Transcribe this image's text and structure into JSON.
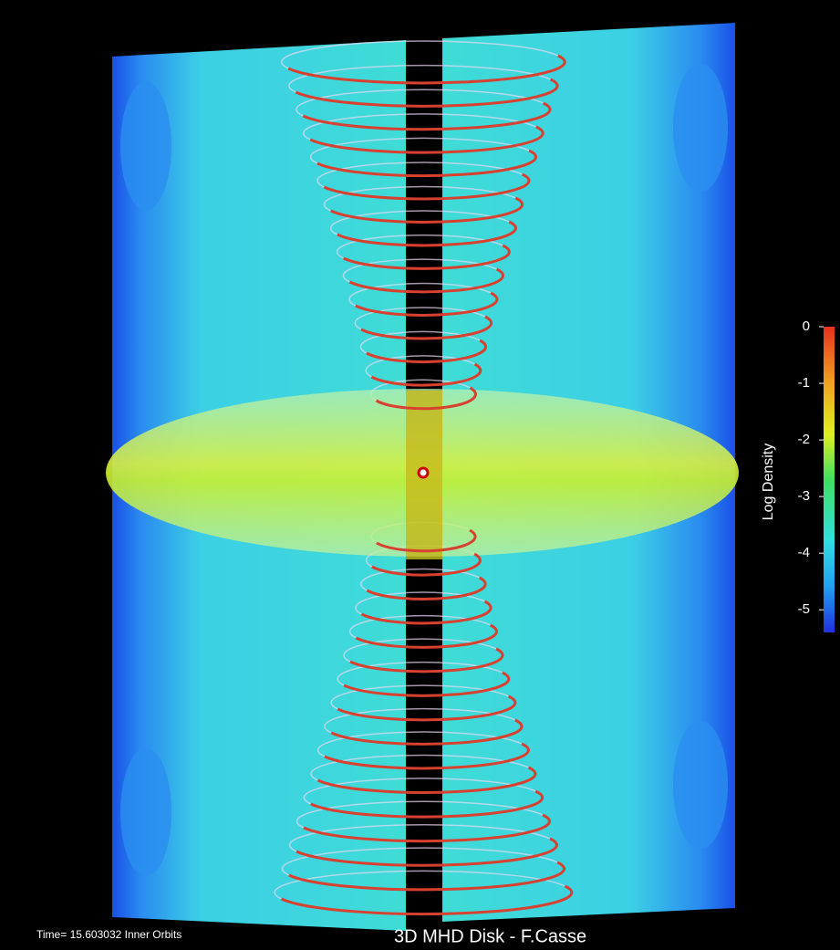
{
  "colorbar": {
    "label": "Log Density",
    "ticks": [
      0,
      -1,
      -2,
      -3,
      -4,
      -5
    ],
    "lim": [
      -5.4,
      0
    ]
  },
  "footer": {
    "time": "Time= 15.603032 Inner Orbits",
    "caption": "3D MHD Disk - F.Casse"
  }
}
